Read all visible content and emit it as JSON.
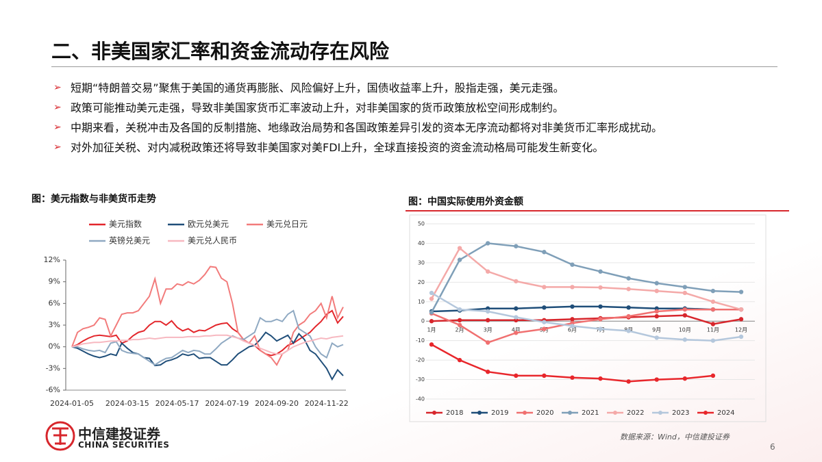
{
  "header": {
    "title": "二、非美国家汇率和资金流动存在风险"
  },
  "bullets": [
    "短期“特朗普交易”聚焦于美国的通货再膨胀、风险偏好上升，国债收益率上升，股指走强，美元走强。",
    "政策可能推动美元走强，导致非美国家货币汇率波动上升，对非美国家的货币政策放松空间形成制约。",
    "中期来看，关税冲击及各国的反制措施、地缘政治局势和各国政策差异引发的资本无序流动都将对非美货币汇率形成扰动。",
    "对外加征关税、对内减税政策还将导致非美国家对美FDI上升，全球直接投资的资金流动格局可能发生新变化。"
  ],
  "chart_data": [
    {
      "type": "line",
      "title": "图：美元指数与非美货币走势",
      "legend": "top",
      "categories": [
        "2024-01-05",
        null,
        null,
        null,
        null,
        null,
        null,
        null,
        null,
        null,
        "2024-03-15",
        null,
        null,
        null,
        null,
        null,
        null,
        null,
        null,
        "2024-05-17",
        null,
        null,
        null,
        null,
        null,
        null,
        null,
        null,
        "2024-07-19",
        null,
        null,
        null,
        null,
        null,
        null,
        null,
        null,
        "2024-09-20",
        null,
        null,
        null,
        null,
        null,
        null,
        null,
        null,
        "2024-11-22",
        null,
        null,
        null
      ],
      "ylim": [
        -6,
        12
      ],
      "yticks": [
        {
          "value": 12,
          "label": "12%"
        },
        {
          "value": 9,
          "label": "9%"
        },
        {
          "value": 6,
          "label": "6%"
        },
        {
          "value": 3,
          "label": "3%"
        },
        {
          "value": 0,
          "label": "0%"
        },
        {
          "value": -3,
          "label": "-3%"
        },
        {
          "value": -6,
          "label": "-6%"
        }
      ],
      "series": [
        {
          "name": "美元指数",
          "color": "#e3262b",
          "values": [
            0,
            0.3,
            0.8,
            1.2,
            1.5,
            1.6,
            1.5,
            1.4,
            1.6,
            0.5,
            0.8,
            1.5,
            2.0,
            2.2,
            3.0,
            3.5,
            3.5,
            3.0,
            3.6,
            2.7,
            2.2,
            2.5,
            2.0,
            2.3,
            2.2,
            2.6,
            3.0,
            3.2,
            3.3,
            2.5,
            2.0,
            1.0,
            0.5,
            0.2,
            -0.5,
            -1.0,
            -1.2,
            -1.0,
            -0.5,
            0.2,
            0.5,
            1.0,
            1.5,
            2.0,
            2.8,
            3.5,
            4.5,
            5.0,
            3.3,
            4.2
          ]
        },
        {
          "name": "欧元兑美元",
          "color": "#1f4e79",
          "values": [
            0,
            -0.2,
            -0.6,
            -1.0,
            -1.3,
            -1.5,
            -1.3,
            -1.0,
            -1.2,
            0.5,
            -0.2,
            -0.8,
            -1.0,
            -1.5,
            -1.6,
            -2.6,
            -2.5,
            -2.0,
            -1.8,
            -1.5,
            -1.0,
            -1.2,
            -1.0,
            -1.6,
            -1.5,
            -1.5,
            -2.0,
            -2.5,
            -2.5,
            -1.8,
            -1.0,
            -0.5,
            0,
            0.2,
            1.0,
            2.0,
            1.5,
            0.8,
            1.2,
            1.6,
            0.5,
            1.8,
            1.0,
            -0.5,
            -1.0,
            -2.0,
            -3.0,
            -4.5,
            -3.2,
            -4.0
          ]
        },
        {
          "name": "美元兑日元",
          "color": "#f27b7b",
          "values": [
            0,
            2.0,
            2.5,
            2.7,
            3.0,
            4.0,
            3.8,
            1.5,
            3.0,
            4.5,
            4.7,
            4.7,
            5.0,
            6.0,
            7.0,
            9.4,
            6.0,
            8.0,
            8.0,
            8.7,
            8.5,
            9.0,
            8.7,
            9.2,
            10.0,
            11.1,
            11.0,
            9.5,
            9.0,
            6.0,
            2.0,
            1.0,
            0.5,
            1.5,
            -0.5,
            -1.0,
            -1.5,
            -2.5,
            -1.0,
            -0.5,
            2.0,
            3.0,
            3.5,
            4.5,
            5.0,
            6.0,
            4.0,
            7.0,
            4.0,
            5.5
          ]
        },
        {
          "name": "英镑兑美元",
          "color": "#8fa9c2",
          "values": [
            0,
            0,
            -0.3,
            -0.5,
            -0.6,
            -0.5,
            -0.8,
            0.5,
            0.7,
            -0.5,
            -0.8,
            -0.9,
            -1.0,
            -1.5,
            -2.0,
            -2.5,
            -2.0,
            -1.6,
            -1.5,
            -1.0,
            -0.5,
            -0.8,
            -0.5,
            -0.6,
            -1.0,
            -1.0,
            -0.3,
            0.5,
            1.0,
            1.5,
            1.2,
            1.0,
            1.5,
            2.0,
            4.0,
            3.5,
            3.5,
            3.8,
            3.5,
            4.5,
            5.0,
            2.5,
            2.0,
            1.5,
            0,
            -1.0,
            -1.5,
            0.5,
            0,
            0.3
          ]
        },
        {
          "name": "美元兑人民币",
          "color": "#f7b8c0",
          "values": [
            0,
            0.2,
            0.4,
            0.5,
            0.6,
            0.6,
            0.7,
            0.8,
            0.8,
            0.9,
            0.9,
            1.0,
            1.0,
            1.1,
            1.2,
            1.1,
            1.2,
            1.3,
            1.3,
            1.3,
            1.3,
            1.4,
            1.4,
            1.4,
            1.5,
            1.5,
            1.6,
            1.6,
            1.6,
            1.4,
            1.2,
            0.8,
            0.5,
            0.2,
            -0.2,
            -0.5,
            -0.8,
            -1.0,
            -1.0,
            -0.5,
            0,
            0.3,
            0.6,
            0.8,
            1.0,
            1.2,
            1.1,
            1.3,
            1.4,
            1.5
          ]
        }
      ]
    },
    {
      "type": "line",
      "title": "图：中国实际使用外资金额",
      "legend": "bottom",
      "markers": true,
      "categories": [
        "1月",
        "2月",
        "3月",
        "4月",
        "5月",
        "6月",
        "7月",
        "8月",
        "9月",
        "10月",
        "11月",
        "12月"
      ],
      "ylim": [
        -40,
        50
      ],
      "yticks": [
        50,
        40,
        30,
        20,
        10,
        0,
        -10,
        -20,
        -30,
        -40
      ],
      "grid": true,
      "series": [
        {
          "name": "2018",
          "color": "#d7262c",
          "values": [
            0,
            0.5,
            0.5,
            0.5,
            0.5,
            1,
            1.5,
            2,
            2.5,
            3,
            -1.5,
            1
          ]
        },
        {
          "name": "2019",
          "color": "#1f4e79",
          "values": [
            5,
            5.5,
            6.5,
            6.5,
            7,
            7.5,
            7.5,
            7,
            6.5,
            6.5,
            6,
            6
          ]
        },
        {
          "name": "2020",
          "color": "#f07070",
          "values": [
            4,
            -2,
            -11,
            -6,
            -4,
            -1,
            1,
            2.5,
            5,
            6,
            6,
            6
          ]
        },
        {
          "name": "2021",
          "color": "#7f9fb8",
          "values": [
            4.5,
            31.5,
            40,
            38.5,
            35.5,
            29,
            25.5,
            22,
            19.5,
            17.5,
            15.5,
            15
          ]
        },
        {
          "name": "2022",
          "color": "#f4a9a8",
          "values": [
            11.5,
            37.5,
            25.5,
            20.5,
            17.5,
            17.5,
            17.3,
            16.5,
            15.5,
            14.5,
            10,
            6
          ]
        },
        {
          "name": "2023",
          "color": "#b4c7dc",
          "values": [
            14.5,
            6,
            5,
            2,
            -0.5,
            -2.5,
            -4,
            -5,
            -8.5,
            -9.5,
            -10,
            -8
          ]
        },
        {
          "name": "2024",
          "color": "#e8262b",
          "values": [
            -12,
            -20,
            -26,
            -28,
            -28,
            -29,
            -29.5,
            -31,
            -30,
            -29.5,
            -28,
            null
          ]
        }
      ]
    }
  ],
  "source": "数据来源：Wind，中信建投证券",
  "logo": {
    "cn": "中信建投证券",
    "en": "CHINA SECURITIES"
  },
  "page_number": "6"
}
